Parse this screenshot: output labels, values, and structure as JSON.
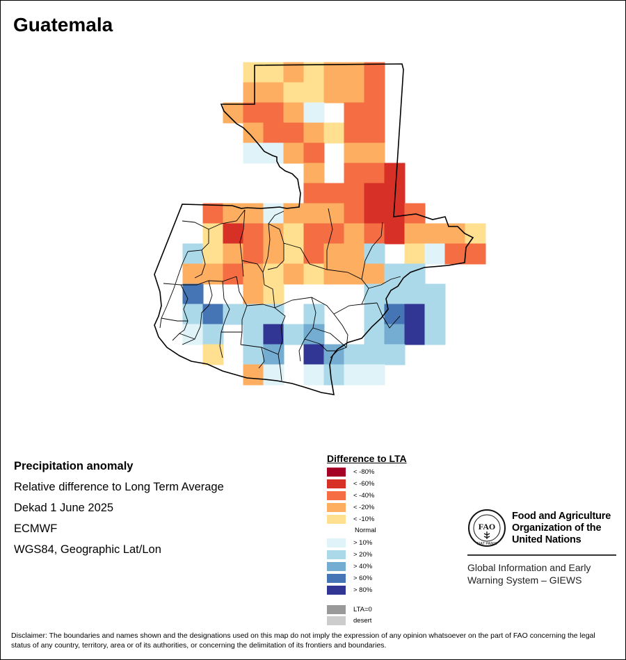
{
  "title": "Guatemala",
  "info": {
    "heading": "Precipitation anomaly",
    "line1": "Relative difference to Long Term Average",
    "line2": "Dekad 1 June 2025",
    "line3": "ECMWF",
    "line4": "WGS84, Geographic Lat/Lon"
  },
  "legend": {
    "title": "Difference to LTA",
    "items": [
      {
        "label": "< -80%",
        "color": "#a50026"
      },
      {
        "label": "< -60%",
        "color": "#d73027"
      },
      {
        "label": "< -40%",
        "color": "#f46d43"
      },
      {
        "label": "< -20%",
        "color": "#fdae61"
      },
      {
        "label": "< -10%",
        "color": "#fee090"
      },
      {
        "label": "Normal",
        "color": "#ffffff"
      },
      {
        "label": "> 10%",
        "color": "#e0f3f8"
      },
      {
        "label": "> 20%",
        "color": "#abd9e9"
      },
      {
        "label": "> 40%",
        "color": "#74add1"
      },
      {
        "label": "> 60%",
        "color": "#4575b4"
      },
      {
        "label": "> 80%",
        "color": "#313695"
      },
      {
        "label": "LTA=0",
        "color": "#999999"
      },
      {
        "label": "desert",
        "color": "#cccccc"
      }
    ]
  },
  "organization": {
    "name_line1": "Food and Agriculture",
    "name_line2": "Organization of the",
    "name_line3": "United Nations",
    "system_line1": "Global Information and Early",
    "system_line2": "Warning System – GIEWS",
    "logo_letters": "FAO",
    "logo_motto": "FIAT PANIS"
  },
  "disclaimer": "Disclaimer: The boundaries and names shown and the designations used on this map do not imply the expression of any opinion whatsoever on the part of FAO concerning the legal status of any country, territory, area or of its authorities, or concerning the delimitation of its frontiers and boundaries.",
  "anomaly_grid": {
    "col_origin": 234,
    "cols": [
      "........................PPPYYYPPPPPPPOO",
      "......................................",
      "........................................."
    ]
  }
}
